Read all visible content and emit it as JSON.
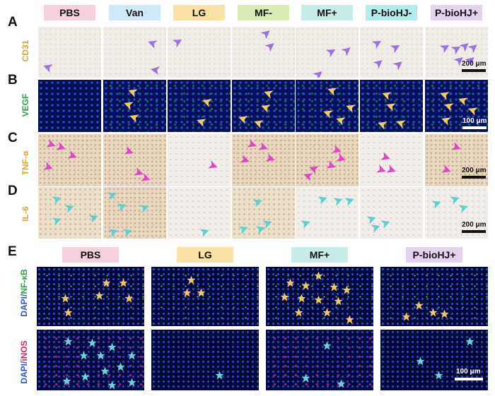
{
  "panel_letters": [
    "A",
    "B",
    "C",
    "D",
    "E"
  ],
  "groups_top": [
    {
      "label": "PBS",
      "color": "#f6d0dc"
    },
    {
      "label": "Van",
      "color": "#cfeaf7"
    },
    {
      "label": "LG",
      "color": "#fbe2a4"
    },
    {
      "label": "MF-",
      "color": "#d9ecb6"
    },
    {
      "label": "MF+",
      "color": "#c6ece8"
    },
    {
      "label": "P-bioHJ-",
      "color": "#b3ecea"
    },
    {
      "label": "P-bioHJ+",
      "color": "#e5d2ef"
    }
  ],
  "row_labels": [
    {
      "label": "CD31",
      "color": "#e8a12c"
    },
    {
      "label": "VEGF",
      "color": "#2aa342"
    },
    {
      "label": "TNF-α",
      "color": "#e8a12c"
    },
    {
      "label": "IL-6",
      "color": "#e8a12c"
    }
  ],
  "scale_bars": {
    "a": "200 μm",
    "b": "100 μm",
    "c": "200 μm",
    "d": "200 μm",
    "e": "100 μm"
  },
  "groups_bottom": [
    {
      "label": "PBS",
      "color": "#f6d0dc"
    },
    {
      "label": "LG",
      "color": "#fbe2a4"
    },
    {
      "label": "MF+",
      "color": "#c6ece8"
    },
    {
      "label": "P-bioHJ+",
      "color": "#e5d2ef"
    }
  ],
  "bottom_row_labels": {
    "nfkb": {
      "prefix": "DAPI/",
      "marker": "NF-κB",
      "prefix_color": "#2f54d8",
      "marker_color": "#2aa342"
    },
    "inos": {
      "prefix": "DAPI/",
      "marker": "iNOS",
      "prefix_color": "#2f54d8",
      "marker_color": "#d6266b"
    }
  },
  "colors": {
    "cd31_arrow": "#9b6fe6",
    "vegf_arrow": "#f3cb63",
    "tnf_arrow": "#df46c8",
    "il6_arrow": "#5fcfd1",
    "nfkb_star": "#f5c65a",
    "inos_star": "#6dd0dc"
  }
}
